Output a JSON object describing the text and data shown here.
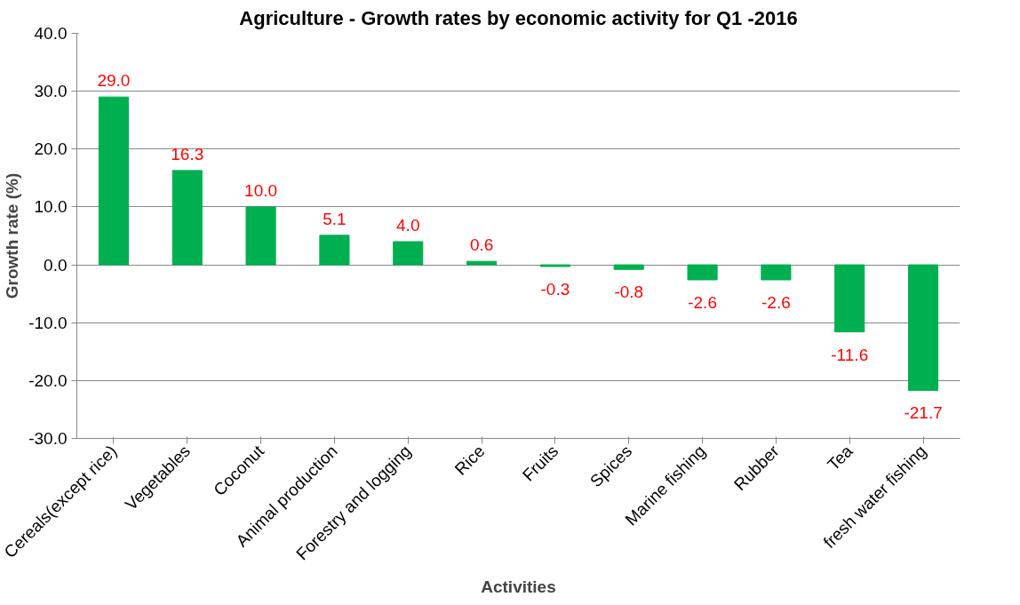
{
  "chart_data": {
    "type": "bar",
    "title": "Agriculture - Growth rates by economic activity for Q1 -2016",
    "xlabel": "Activities",
    "ylabel": "Growth rate (%)",
    "categories": [
      "Cereals(except rice)",
      "Vegetables",
      "Coconut",
      "Animal production",
      "Forestry and logging",
      "Rice",
      "Fruits",
      "Spices",
      "Marine fishing",
      "Rubber",
      "Tea",
      "fresh water fishing"
    ],
    "values": [
      29.0,
      16.3,
      10.0,
      5.1,
      4.0,
      0.6,
      -0.3,
      -0.8,
      -2.6,
      -2.6,
      -11.6,
      -21.7
    ],
    "color": "#00b050",
    "value_labels": [
      "29.0",
      "16.3",
      "10.0",
      "5.1",
      "4.0",
      "0.6",
      "-0.3",
      "-0.8",
      "-2.6",
      "-2.6",
      "-11.6",
      "-21.7"
    ],
    "ylim": [
      -30,
      40
    ],
    "yticks": [
      {
        "value": -30,
        "label": "-30.0"
      },
      {
        "value": -20,
        "label": "-20.0"
      },
      {
        "value": -10,
        "label": "-10.0"
      },
      {
        "value": 0,
        "label": "0.0"
      },
      {
        "value": 10,
        "label": "10.0"
      },
      {
        "value": 20,
        "label": "20.0"
      },
      {
        "value": 30,
        "label": "30.0"
      },
      {
        "value": 40,
        "label": "40.0"
      }
    ],
    "grid": "y"
  }
}
